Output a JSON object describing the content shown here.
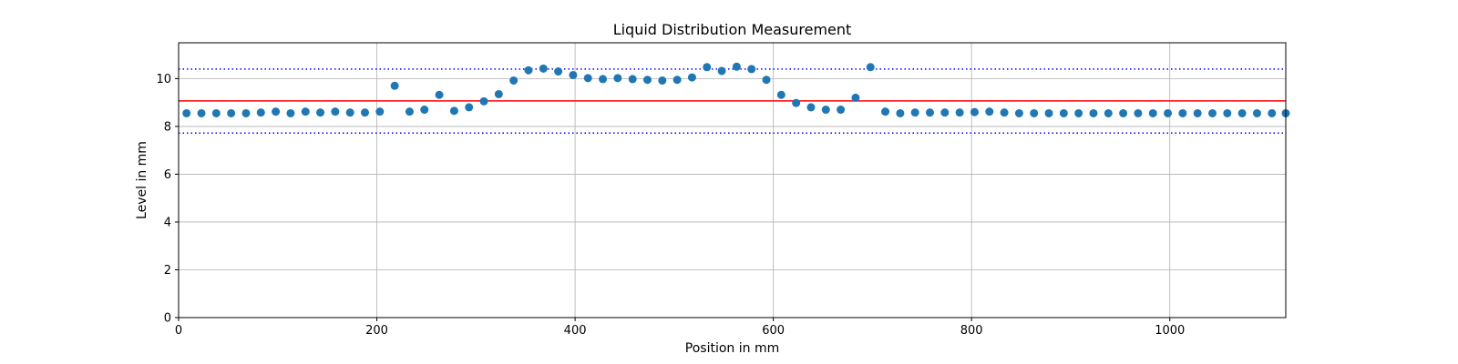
{
  "chart_data": {
    "type": "scatter",
    "title": "Liquid Distribution Measurement",
    "xlabel": "Position in mm",
    "ylabel": "Level in mm",
    "xlim": [
      0,
      1117
    ],
    "ylim": [
      0,
      11.5
    ],
    "xticks": [
      0,
      200,
      400,
      600,
      800,
      1000
    ],
    "yticks": [
      0,
      2,
      4,
      6,
      8,
      10
    ],
    "grid": true,
    "marker_color": "#1f77b4",
    "points": [
      {
        "x": 8,
        "y": 8.55
      },
      {
        "x": 23,
        "y": 8.55
      },
      {
        "x": 38,
        "y": 8.55
      },
      {
        "x": 53,
        "y": 8.55
      },
      {
        "x": 68,
        "y": 8.55
      },
      {
        "x": 83,
        "y": 8.58
      },
      {
        "x": 98,
        "y": 8.62
      },
      {
        "x": 113,
        "y": 8.55
      },
      {
        "x": 128,
        "y": 8.62
      },
      {
        "x": 143,
        "y": 8.58
      },
      {
        "x": 158,
        "y": 8.62
      },
      {
        "x": 173,
        "y": 8.58
      },
      {
        "x": 188,
        "y": 8.58
      },
      {
        "x": 203,
        "y": 8.62
      },
      {
        "x": 218,
        "y": 9.7
      },
      {
        "x": 233,
        "y": 8.62
      },
      {
        "x": 248,
        "y": 8.7
      },
      {
        "x": 263,
        "y": 9.32
      },
      {
        "x": 278,
        "y": 8.65
      },
      {
        "x": 293,
        "y": 8.8
      },
      {
        "x": 308,
        "y": 9.05
      },
      {
        "x": 323,
        "y": 9.35
      },
      {
        "x": 338,
        "y": 9.92
      },
      {
        "x": 353,
        "y": 10.35
      },
      {
        "x": 368,
        "y": 10.42
      },
      {
        "x": 383,
        "y": 10.3
      },
      {
        "x": 398,
        "y": 10.15
      },
      {
        "x": 413,
        "y": 10.02
      },
      {
        "x": 428,
        "y": 9.98
      },
      {
        "x": 443,
        "y": 10.02
      },
      {
        "x": 458,
        "y": 9.98
      },
      {
        "x": 473,
        "y": 9.95
      },
      {
        "x": 488,
        "y": 9.92
      },
      {
        "x": 503,
        "y": 9.95
      },
      {
        "x": 518,
        "y": 10.05
      },
      {
        "x": 533,
        "y": 10.48
      },
      {
        "x": 548,
        "y": 10.32
      },
      {
        "x": 563,
        "y": 10.5
      },
      {
        "x": 578,
        "y": 10.4
      },
      {
        "x": 593,
        "y": 9.95
      },
      {
        "x": 608,
        "y": 9.32
      },
      {
        "x": 623,
        "y": 8.98
      },
      {
        "x": 638,
        "y": 8.8
      },
      {
        "x": 653,
        "y": 8.7
      },
      {
        "x": 668,
        "y": 8.7
      },
      {
        "x": 683,
        "y": 9.2
      },
      {
        "x": 698,
        "y": 10.48
      },
      {
        "x": 713,
        "y": 8.62
      },
      {
        "x": 728,
        "y": 8.55
      },
      {
        "x": 743,
        "y": 8.58
      },
      {
        "x": 758,
        "y": 8.58
      },
      {
        "x": 773,
        "y": 8.58
      },
      {
        "x": 788,
        "y": 8.58
      },
      {
        "x": 803,
        "y": 8.6
      },
      {
        "x": 818,
        "y": 8.62
      },
      {
        "x": 833,
        "y": 8.58
      },
      {
        "x": 848,
        "y": 8.55
      },
      {
        "x": 863,
        "y": 8.55
      },
      {
        "x": 878,
        "y": 8.55
      },
      {
        "x": 893,
        "y": 8.55
      },
      {
        "x": 908,
        "y": 8.55
      },
      {
        "x": 923,
        "y": 8.55
      },
      {
        "x": 938,
        "y": 8.55
      },
      {
        "x": 953,
        "y": 8.55
      },
      {
        "x": 968,
        "y": 8.55
      },
      {
        "x": 983,
        "y": 8.55
      },
      {
        "x": 998,
        "y": 8.55
      },
      {
        "x": 1013,
        "y": 8.55
      },
      {
        "x": 1028,
        "y": 8.55
      },
      {
        "x": 1043,
        "y": 8.55
      },
      {
        "x": 1058,
        "y": 8.55
      },
      {
        "x": 1073,
        "y": 8.55
      },
      {
        "x": 1088,
        "y": 8.55
      },
      {
        "x": 1103,
        "y": 8.55
      },
      {
        "x": 1117,
        "y": 8.55
      }
    ],
    "reference_lines": [
      {
        "y": 9.07,
        "color": "#ff0000",
        "style": "solid"
      },
      {
        "y": 10.4,
        "color": "#0000ff",
        "style": "dotted"
      },
      {
        "y": 7.72,
        "color": "#0000ff",
        "style": "dotted"
      }
    ]
  }
}
